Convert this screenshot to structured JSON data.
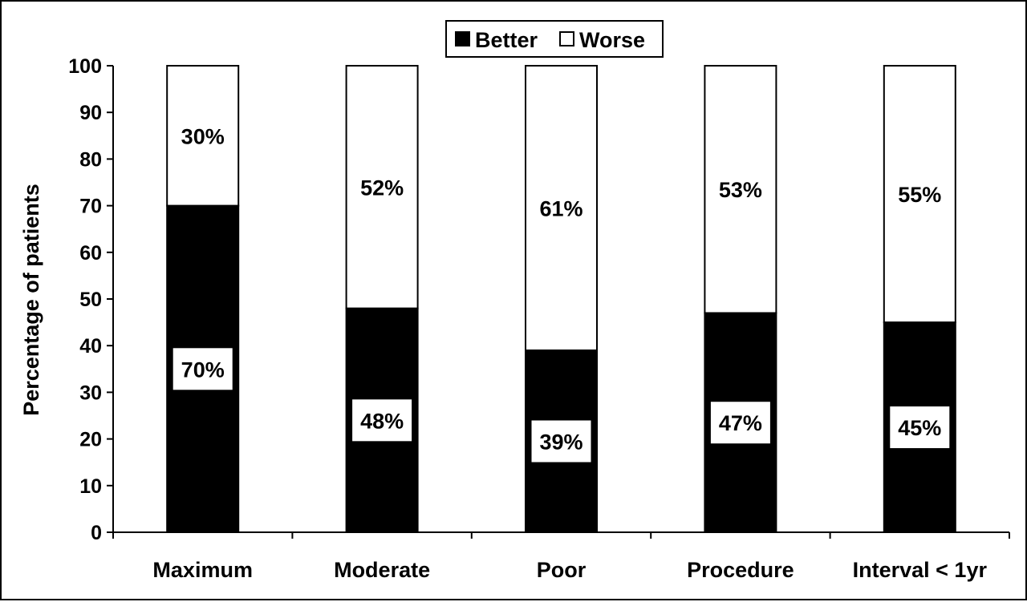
{
  "chart_data": {
    "type": "bar",
    "stacked": true,
    "categories": [
      "Maximum",
      "Moderate",
      "Poor",
      "Procedure",
      "Interval < 1yr"
    ],
    "series": [
      {
        "name": "Better",
        "values": [
          70,
          48,
          39,
          47,
          45
        ],
        "color": "#000000"
      },
      {
        "name": "Worse",
        "values": [
          30,
          52,
          61,
          53,
          55
        ],
        "color": "#ffffff"
      }
    ],
    "data_labels": {
      "better": [
        "70%",
        "48%",
        "39%",
        "47%",
        "45%"
      ],
      "worse": [
        "30%",
        "52%",
        "61%",
        "53%",
        "55%"
      ]
    },
    "title": "",
    "xlabel": "",
    "ylabel": "Percentage of patients",
    "ylim": [
      0,
      100
    ],
    "yticks": [
      0,
      10,
      20,
      30,
      40,
      50,
      60,
      70,
      80,
      90,
      100
    ],
    "ytick_labels": [
      "0",
      "10",
      "20",
      "30",
      "40",
      "50",
      "60",
      "70",
      "80",
      "90",
      "100"
    ],
    "grid": false,
    "legend": {
      "position": "top-center",
      "entries": [
        "Better",
        "Worse"
      ]
    }
  }
}
